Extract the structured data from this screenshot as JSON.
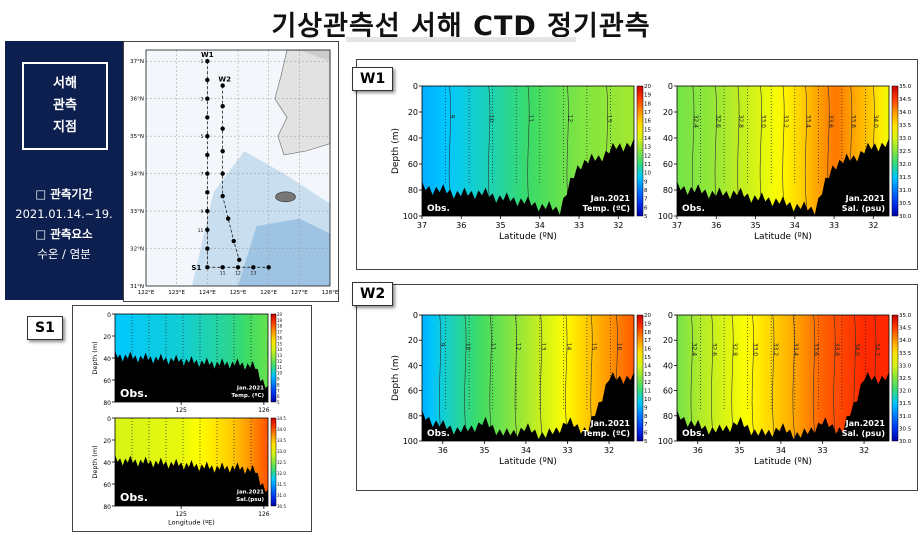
{
  "header": {
    "title": "기상관측선 서해 CTD 정기관측"
  },
  "sidebar": {
    "site_label": [
      "서해",
      "관측",
      "지점"
    ],
    "period_heading": "□ 관측기간",
    "period_value": "2021.01.14.~19.",
    "elements_heading": "□ 관측요소",
    "elements_value": "수온 / 염분"
  },
  "map": {
    "lon_ticks": [
      "122°E",
      "123°E",
      "124°E",
      "125°E",
      "126°E",
      "127°E",
      "128°E"
    ],
    "lat_ticks": [
      "37°N",
      "36°N",
      "35°N",
      "34°N",
      "33°N",
      "32°N",
      "31°N"
    ],
    "lines": [
      {
        "name": "W1",
        "lon": 124.0,
        "stations": [
          37.0,
          36.5,
          36.0,
          35.5,
          35.0,
          34.5,
          34.0,
          33.5,
          33.0,
          32.5,
          32.0
        ]
      },
      {
        "name": "W2",
        "lon": 124.5,
        "stations": [
          36.35,
          35.8,
          35.2,
          34.6,
          34.0,
          33.4,
          32.8,
          32.2,
          31.7
        ]
      },
      {
        "name": "S1",
        "lat": 31.5,
        "stations": [
          124.0,
          124.5,
          125.0,
          125.5,
          126.0
        ]
      }
    ],
    "station_numbers": [
      "1",
      "2",
      "3",
      "4",
      "5",
      "6",
      "7",
      "8",
      "9",
      "10",
      "11",
      "12",
      "13"
    ]
  },
  "colorbars": {
    "temperature_ticks": [
      "20",
      "19",
      "18",
      "17",
      "16",
      "15",
      "14",
      "13",
      "12",
      "11",
      "10",
      "9",
      "8",
      "7",
      "6",
      "5"
    ],
    "salinity_ticks": [
      "35.0",
      "34.5",
      "34.0",
      "33.5",
      "33.0",
      "32.5",
      "32.0",
      "31.5",
      "31.0",
      "30.5",
      "30.0"
    ],
    "s1_salinity_ticks": [
      "34.5",
      "34.0",
      "33.5",
      "33.0",
      "32.5",
      "32.0",
      "31.5",
      "31.0",
      "30.5"
    ]
  },
  "chart_data": [
    {
      "type": "heatmap",
      "id": "w1-temp",
      "panel": "W1",
      "ylabel": "Depth (m)",
      "xlabel": "Latitude (ºN)",
      "x": [
        37,
        36,
        35,
        34,
        33,
        32
      ],
      "xlim": [
        37,
        31.6
      ],
      "y": [
        0,
        20,
        40,
        60,
        80,
        100
      ],
      "ylim": [
        0,
        100
      ],
      "label_obs": "Obs.",
      "label_date": "Jan.2021",
      "label_var": "Temp. (ºC)",
      "contour_values": [
        "9",
        "10",
        "11",
        "12",
        "13"
      ],
      "colorbar_range": [
        5,
        20
      ],
      "surface_profile": {
        "lat": [
          37,
          36,
          35,
          34,
          33,
          32,
          31.6
        ],
        "value": [
          9.0,
          9.8,
          10.6,
          11.5,
          12.4,
          12.8,
          13.0
        ]
      },
      "seabed_depth": {
        "lat": [
          37,
          36.5,
          36,
          35.5,
          35,
          34.5,
          34,
          33.5,
          33,
          32.5,
          32,
          31.6
        ],
        "depth": [
          78,
          80,
          83,
          82,
          86,
          88,
          92,
          95,
          60,
          55,
          46,
          45
        ]
      }
    },
    {
      "type": "heatmap",
      "id": "w1-sal",
      "panel": "W1",
      "ylabel": "",
      "xlabel": "Latitude (ºN)",
      "x": [
        37,
        36,
        35,
        34,
        33,
        32
      ],
      "xlim": [
        37,
        31.6
      ],
      "y": [
        0,
        20,
        40,
        60,
        80,
        100
      ],
      "ylim": [
        0,
        100
      ],
      "label_obs": "Obs.",
      "label_date": "Jan.2021",
      "label_var": "Sal. (psu)",
      "contour_values": [
        "32.4",
        "32.6",
        "32.8",
        "33.0",
        "33.2",
        "33.4",
        "33.6",
        "33.8",
        "34.0"
      ],
      "colorbar_range": [
        30,
        35
      ],
      "surface_profile": {
        "lat": [
          37,
          36,
          35,
          34,
          33,
          32,
          31.6
        ],
        "value": [
          32.4,
          32.6,
          33.0,
          33.5,
          34.2,
          33.6,
          33.2
        ]
      },
      "seabed_depth": {
        "lat": [
          37,
          36.5,
          36,
          35.5,
          35,
          34.5,
          34,
          33.5,
          33,
          32.5,
          32,
          31.6
        ],
        "depth": [
          78,
          80,
          83,
          82,
          86,
          88,
          92,
          95,
          60,
          55,
          46,
          45
        ]
      }
    },
    {
      "type": "heatmap",
      "id": "w2-temp",
      "panel": "W2",
      "ylabel": "Depth (m)",
      "xlabel": "Latitude (ºN)",
      "x": [
        36,
        35,
        34,
        33,
        32
      ],
      "xlim": [
        36.5,
        31.4
      ],
      "y": [
        0,
        20,
        40,
        60,
        80,
        100
      ],
      "ylim": [
        0,
        100
      ],
      "label_obs": "Obs.",
      "label_date": "Jan.2021",
      "label_var": "Temp. (ºC)",
      "contour_values": [
        "9",
        "10",
        "11",
        "12",
        "13",
        "14",
        "15",
        "16"
      ],
      "colorbar_range": [
        5,
        20
      ],
      "surface_profile": {
        "lat": [
          36.5,
          36,
          35,
          34,
          33,
          32,
          31.4
        ],
        "value": [
          9.0,
          10.0,
          11.5,
          13.0,
          15.0,
          17.0,
          18.0
        ]
      },
      "seabed_depth": {
        "lat": [
          36.5,
          36,
          35.5,
          35,
          34.5,
          34,
          33.5,
          33,
          32.5,
          32,
          31.4
        ],
        "depth": [
          80,
          88,
          92,
          85,
          95,
          90,
          96,
          85,
          92,
          50,
          50
        ]
      }
    },
    {
      "type": "heatmap",
      "id": "w2-sal",
      "panel": "W2",
      "ylabel": "",
      "xlabel": "Latitude (ºN)",
      "x": [
        36,
        35,
        34,
        33,
        32
      ],
      "xlim": [
        36.5,
        31.4
      ],
      "y": [
        0,
        20,
        40,
        60,
        80,
        100
      ],
      "ylim": [
        0,
        100
      ],
      "label_obs": "Obs.",
      "label_date": "Jan.2021",
      "label_var": "Sal. (psu)",
      "contour_values": [
        "32.4",
        "32.6",
        "32.8",
        "33.0",
        "33.2",
        "33.4",
        "33.6",
        "33.8",
        "34.0",
        "34.2"
      ],
      "colorbar_range": [
        30,
        35
      ],
      "surface_profile": {
        "lat": [
          36.5,
          36,
          35,
          34,
          33,
          32,
          31.4
        ],
        "value": [
          32.4,
          32.7,
          33.2,
          33.7,
          34.3,
          34.6,
          34.6
        ]
      },
      "seabed_depth": {
        "lat": [
          36.5,
          36,
          35.5,
          35,
          34.5,
          34,
          33.5,
          33,
          32.5,
          32,
          31.4
        ],
        "depth": [
          80,
          88,
          92,
          85,
          95,
          90,
          96,
          85,
          92,
          50,
          50
        ]
      }
    },
    {
      "type": "heatmap",
      "id": "s1-temp",
      "panel": "S1",
      "ylabel": "Depth (m)",
      "xlabel": "",
      "x": [
        125,
        126
      ],
      "xlim": [
        124.2,
        126.05
      ],
      "y": [
        0,
        20,
        40,
        60,
        80
      ],
      "ylim": [
        0,
        80
      ],
      "label_obs": "Obs.",
      "label_date": "Jan.2021",
      "label_var": "Temp. (ºC)",
      "colorbar_range": [
        5,
        20
      ],
      "surface_profile": {
        "lon": [
          124.2,
          125.0,
          125.6,
          126.05
        ],
        "value": [
          9.5,
          10.0,
          10.8,
          12.0
        ]
      },
      "seabed_depth": {
        "lon": [
          124.2,
          124.6,
          125.0,
          125.4,
          125.7,
          125.9,
          126.05
        ],
        "depth": [
          38,
          40,
          42,
          45,
          45,
          48,
          70
        ]
      }
    },
    {
      "type": "heatmap",
      "id": "s1-sal",
      "panel": "S1",
      "ylabel": "Depth (m)",
      "xlabel": "Longitude (ºE)",
      "x": [
        125,
        126
      ],
      "xlim": [
        124.2,
        126.05
      ],
      "y": [
        0,
        20,
        40,
        60,
        80
      ],
      "ylim": [
        0,
        80
      ],
      "label_obs": "Obs.",
      "label_date": "Jan.2021",
      "label_var": "Sal.(psu)",
      "colorbar_range": [
        30.5,
        34.5
      ],
      "surface_profile": {
        "lon": [
          124.2,
          125.0,
          125.6,
          126.05
        ],
        "value": [
          32.9,
          33.0,
          33.4,
          34.0
        ]
      },
      "seabed_depth": {
        "lon": [
          124.2,
          124.6,
          125.0,
          125.4,
          125.7,
          125.9,
          126.05
        ],
        "depth": [
          38,
          40,
          42,
          45,
          45,
          48,
          70
        ]
      }
    }
  ],
  "tags": {
    "w1": "W1",
    "w2": "W2",
    "s1": "S1"
  }
}
